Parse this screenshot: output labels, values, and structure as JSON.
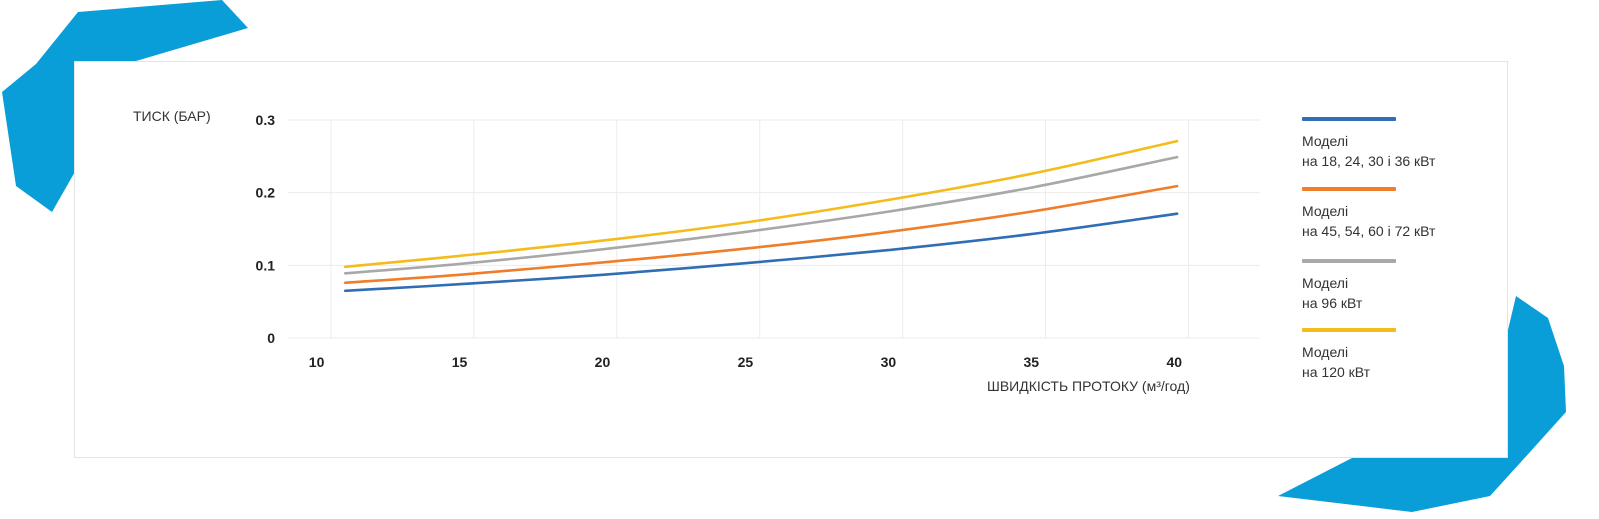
{
  "chart_data": {
    "type": "line",
    "ylabel": "ТИСК (БАР)",
    "xlabel": "ШВИДКІСТЬ ПРОТОКУ (м³/год)",
    "xlim": [
      9,
      43
    ],
    "ylim": [
      0,
      0.3
    ],
    "xticks": [
      "10",
      "15",
      "20",
      "25",
      "30",
      "35",
      "40"
    ],
    "xtick_values": [
      10,
      15,
      20,
      25,
      30,
      35,
      40
    ],
    "yticks": [
      "0",
      "0.1",
      "0.2",
      "0.3"
    ],
    "ytick_values": [
      0,
      0.1,
      0.2,
      0.3
    ],
    "grid": "vertical and horizontal",
    "legend_position": "right",
    "x": [
      11,
      15,
      20,
      25,
      30,
      35,
      40.1
    ],
    "series": [
      {
        "name_line1": "Моделі",
        "name_line2": "на 18, 24, 30 і 36 кВт",
        "color": "#2f6db5",
        "values": [
          0.065,
          0.074,
          0.087,
          0.103,
          0.121,
          0.143,
          0.171
        ]
      },
      {
        "name_line1": "Моделі",
        "name_line2": "на 45, 54, 60 і 72 кВт",
        "color": "#ef7d2a",
        "values": [
          0.076,
          0.087,
          0.104,
          0.123,
          0.146,
          0.174,
          0.209
        ]
      },
      {
        "name_line1": "Моделі",
        "name_line2": "на 96 кВт",
        "color": "#a8a8a8",
        "values": [
          0.089,
          0.102,
          0.122,
          0.146,
          0.174,
          0.207,
          0.249
        ]
      },
      {
        "name_line1": "Моделі",
        "name_line2": "на 120 кВт",
        "color": "#f4bc1b",
        "values": [
          0.098,
          0.113,
          0.134,
          0.159,
          0.19,
          0.226,
          0.271
        ]
      }
    ]
  },
  "decor": {
    "accent_color": "#0a9ed9",
    "grid_color": "#ececec"
  }
}
